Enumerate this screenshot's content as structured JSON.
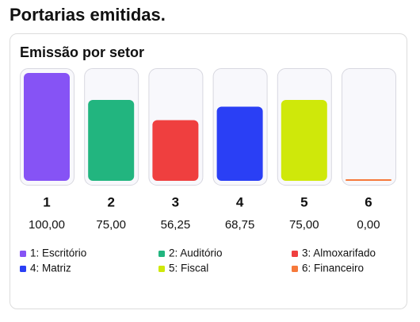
{
  "header": {
    "title": "Portarias emitidas."
  },
  "chart_data": {
    "type": "bar",
    "title": "Emissão por setor",
    "categories": [
      "1",
      "2",
      "3",
      "4",
      "5",
      "6"
    ],
    "values": [
      100,
      75,
      56.25,
      68.75,
      75,
      0
    ],
    "value_labels": [
      "100,00",
      "75,00",
      "56,25",
      "68,75",
      "75,00",
      "0,00"
    ],
    "colors": [
      "#8653f5",
      "#22b57f",
      "#ef3f3f",
      "#2a3ff5",
      "#cfe80a",
      "#f6793b"
    ],
    "legend": [
      "1: Escritório",
      "2: Auditório",
      "3: Almoxarifado",
      "4: Matriz",
      "5: Fiscal",
      "6: Financeiro"
    ],
    "ylim": [
      0,
      100
    ]
  }
}
